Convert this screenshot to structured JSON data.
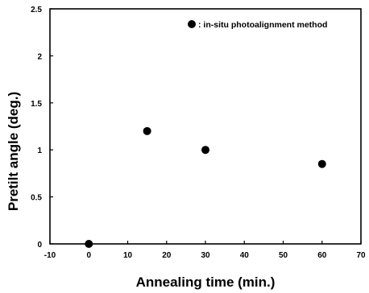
{
  "chart_data": {
    "type": "scatter",
    "xlabel": "Annealing time (min.)",
    "ylabel": "Pretilt angle (deg.)",
    "xlim": [
      -10,
      70
    ],
    "ylim": [
      0,
      2.5
    ],
    "x_ticks": [
      "-10",
      "0",
      "10",
      "20",
      "30",
      "40",
      "50",
      "60",
      "70"
    ],
    "y_ticks": [
      "0",
      "0.5",
      "1",
      "1.5",
      "2",
      "2.5"
    ],
    "grid": false,
    "legend_position": "top-right",
    "series": [
      {
        "name": ": in-situ photoalignment method",
        "marker": "filled-circle",
        "color": "#000000",
        "x": [
          0,
          15,
          30,
          60
        ],
        "y": [
          0.0,
          1.2,
          1.0,
          0.85
        ]
      }
    ]
  }
}
